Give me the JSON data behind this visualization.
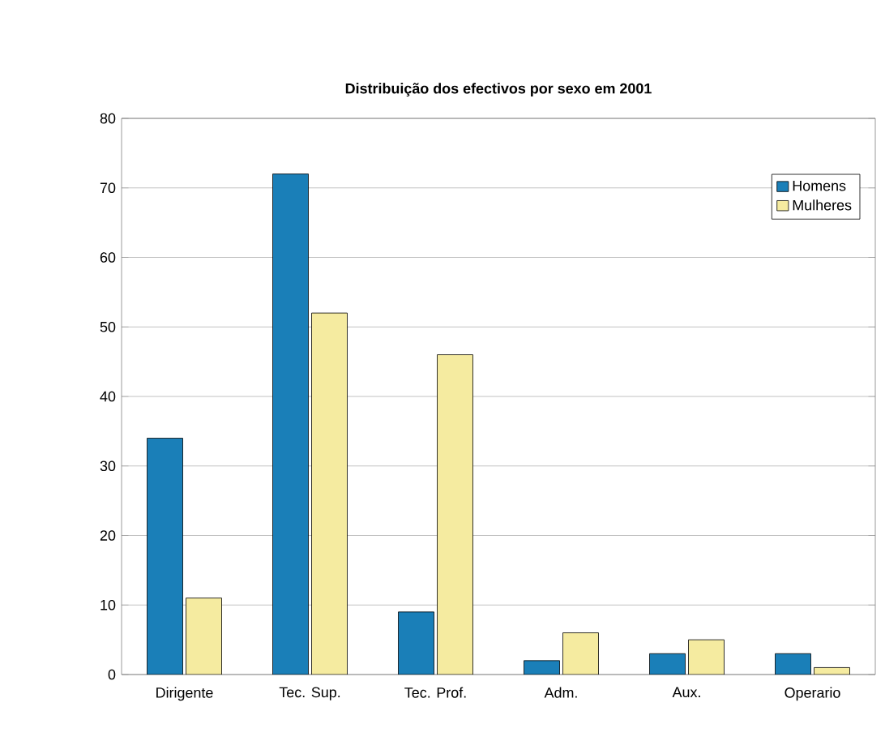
{
  "chart_data": {
    "type": "bar",
    "title": "Distribuição dos efectivos por sexo em 2001",
    "categories": [
      "Dirigente",
      "Tec. Sup.",
      "Tec. Prof.",
      "Adm.",
      "Aux.",
      "Operario"
    ],
    "series": [
      {
        "name": "Homens",
        "color": "#1a7fb8",
        "values": [
          34,
          72,
          9,
          2,
          3,
          3
        ]
      },
      {
        "name": "Mulheres",
        "color": "#f5eba0",
        "values": [
          11,
          52,
          46,
          6,
          5,
          1
        ]
      }
    ],
    "ylim": [
      0,
      80
    ],
    "yticks": [
      0,
      10,
      20,
      30,
      40,
      50,
      60,
      70,
      80
    ],
    "grid": "y",
    "legend": "top right"
  }
}
